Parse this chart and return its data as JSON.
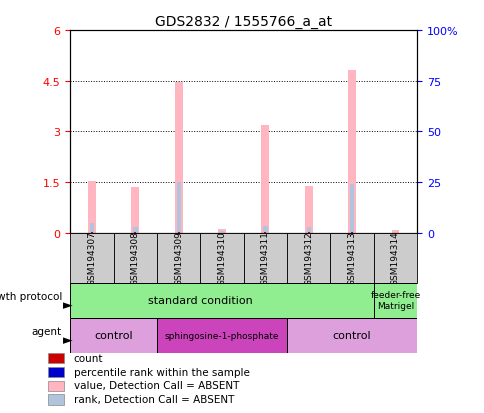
{
  "title": "GDS2832 / 1555766_a_at",
  "samples": [
    "GSM194307",
    "GSM194308",
    "GSM194309",
    "GSM194310",
    "GSM194311",
    "GSM194312",
    "GSM194313",
    "GSM194314"
  ],
  "value_absent": [
    1.55,
    1.35,
    4.45,
    0.12,
    3.18,
    1.38,
    4.82,
    0.1
  ],
  "rank_absent": [
    0.28,
    0.18,
    1.5,
    0.06,
    0.2,
    0.18,
    1.45,
    0.0
  ],
  "count_vals": [
    0.04,
    0.02,
    0.03,
    0.01,
    0.03,
    0.02,
    0.03,
    0.0
  ],
  "ylim": [
    0,
    6
  ],
  "yticks_left": [
    0,
    1.5,
    3.0,
    4.5,
    6
  ],
  "yticks_right": [
    0,
    25,
    50,
    75,
    100
  ],
  "color_value_absent": "#FFB6C1",
  "color_rank_absent": "#B0C4DE",
  "color_count": "#CC0000",
  "color_percentile": "#0000CC",
  "sample_box_color": "#CCCCCC",
  "gp_color": "#90EE90",
  "ctrl_color": "#DDA0DD",
  "sph_color": "#CC44BB",
  "legend_items": [
    {
      "color": "#CC0000",
      "label": "count",
      "marker": "s"
    },
    {
      "color": "#0000CC",
      "label": "percentile rank within the sample",
      "marker": "s"
    },
    {
      "color": "#FFB6C1",
      "label": "value, Detection Call = ABSENT",
      "marker": "s"
    },
    {
      "color": "#B0C4DE",
      "label": "rank, Detection Call = ABSENT",
      "marker": "s"
    }
  ]
}
